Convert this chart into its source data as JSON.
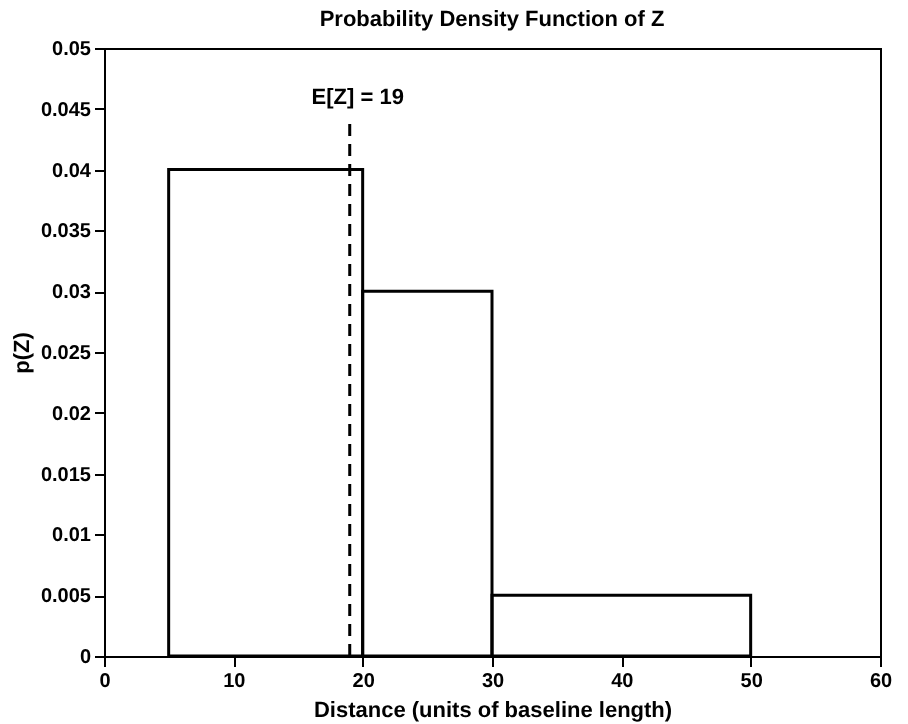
{
  "chart_data": {
    "type": "histogram",
    "title": "Probability Density Function of Z",
    "xlabel": "Distance (units of baseline length)",
    "ylabel": "p(Z)",
    "bins": [
      5,
      20,
      30,
      50
    ],
    "values": [
      0.04,
      0.03,
      0.005
    ],
    "color": "#000000",
    "xlim": [
      0,
      60
    ],
    "xticks": [
      0,
      10,
      20,
      30,
      40,
      50,
      60
    ],
    "ylim": [
      0,
      0.05
    ],
    "yticks": [
      0,
      0.005,
      0.01,
      0.015,
      0.02,
      0.025,
      0.03,
      0.035,
      0.04,
      0.045,
      0.05
    ],
    "ref_lines": [
      {
        "axis": "x",
        "value": 19,
        "label": "E[Z] = 19",
        "line_style": "dashed",
        "color": "#000000"
      }
    ],
    "grid": false
  }
}
